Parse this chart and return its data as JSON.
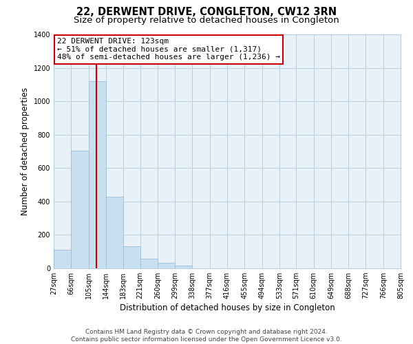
{
  "title": "22, DERWENT DRIVE, CONGLETON, CW12 3RN",
  "subtitle": "Size of property relative to detached houses in Congleton",
  "xlabel": "Distribution of detached houses by size in Congleton",
  "ylabel": "Number of detached properties",
  "bin_edges": [
    27,
    66,
    105,
    144,
    183,
    221,
    260,
    299,
    338,
    377,
    416,
    455,
    494,
    533,
    571,
    610,
    649,
    688,
    727,
    766,
    805
  ],
  "bar_heights": [
    110,
    705,
    1120,
    430,
    130,
    57,
    32,
    17,
    0,
    0,
    0,
    0,
    0,
    0,
    0,
    0,
    0,
    0,
    0,
    0
  ],
  "bar_color": "#c8dff0",
  "bar_edge_color": "#9bbdd6",
  "vline_x": 123,
  "vline_color": "#cc0000",
  "annotation_title": "22 DERWENT DRIVE: 123sqm",
  "annotation_line1": "← 51% of detached houses are smaller (1,317)",
  "annotation_line2": "48% of semi-detached houses are larger (1,236) →",
  "annotation_box_color": "#ffffff",
  "annotation_box_edge": "#cc0000",
  "ylim": [
    0,
    1400
  ],
  "yticks": [
    0,
    200,
    400,
    600,
    800,
    1000,
    1200,
    1400
  ],
  "tick_labels": [
    "27sqm",
    "66sqm",
    "105sqm",
    "144sqm",
    "183sqm",
    "221sqm",
    "260sqm",
    "299sqm",
    "338sqm",
    "377sqm",
    "416sqm",
    "455sqm",
    "494sqm",
    "533sqm",
    "571sqm",
    "610sqm",
    "649sqm",
    "688sqm",
    "727sqm",
    "766sqm",
    "805sqm"
  ],
  "footer_line1": "Contains HM Land Registry data © Crown copyright and database right 2024.",
  "footer_line2": "Contains public sector information licensed under the Open Government Licence v3.0.",
  "bg_color": "#ffffff",
  "plot_bg_color": "#e8f0f8",
  "grid_color": "#b8cfe0",
  "title_fontsize": 10.5,
  "subtitle_fontsize": 9.5,
  "axis_label_fontsize": 8.5,
  "tick_fontsize": 7,
  "annotation_fontsize": 8,
  "footer_fontsize": 6.5
}
